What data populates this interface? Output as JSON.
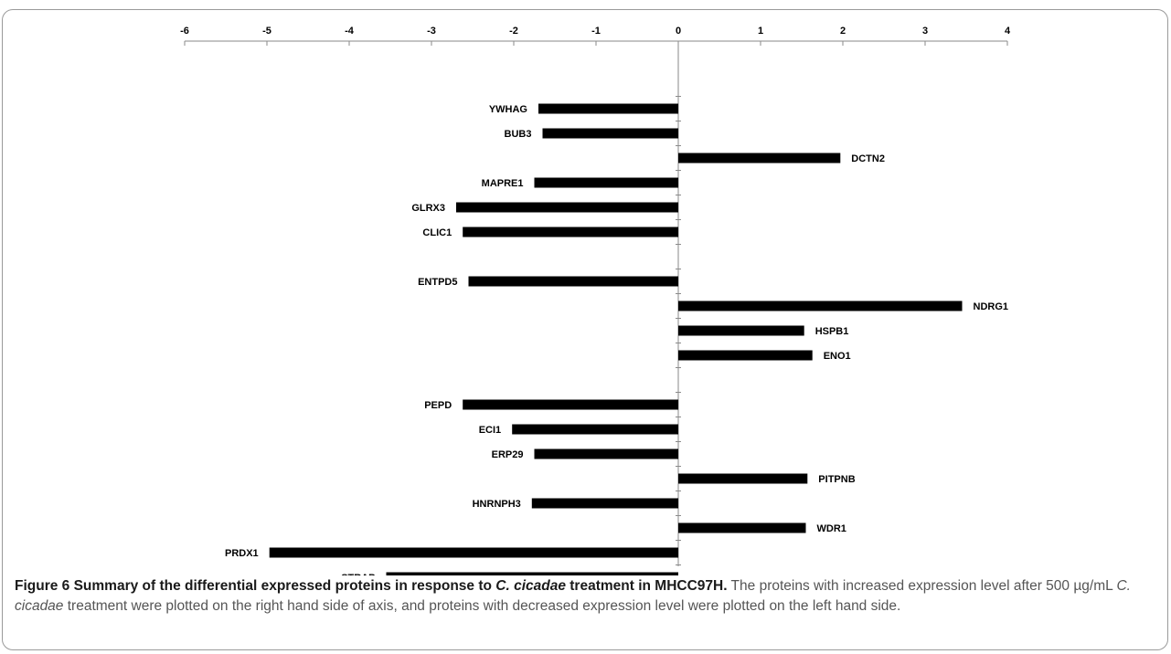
{
  "chart_data": {
    "type": "bar",
    "orientation": "horizontal",
    "categories": [
      "YWHAG",
      "BUB3",
      "DCTN2",
      "MAPRE1",
      "GLRX3",
      "CLIC1",
      "",
      "ENTPD5",
      "NDRG1",
      "HSPB1",
      "ENO1",
      "",
      "PEPD",
      "ECI1",
      "ERP29",
      "PITPNB",
      "HNRNPH3",
      "WDR1",
      "PRDX1",
      "STRAP"
    ],
    "values": [
      -1.7,
      -1.65,
      1.97,
      -1.75,
      -2.7,
      -2.62,
      null,
      -2.55,
      3.45,
      1.53,
      1.63,
      null,
      -2.62,
      -2.02,
      -1.75,
      1.57,
      -1.78,
      1.55,
      -4.97,
      -3.55
    ],
    "xlim": [
      -6,
      4
    ],
    "x_ticks": [
      "-6",
      "-5",
      "-4",
      "-3",
      "-2",
      "-1",
      "0",
      "1",
      "2",
      "3",
      "4"
    ],
    "axis_position": "top",
    "grid": false,
    "bar_color": "#000000"
  },
  "caption": {
    "label": "Figure 6 Summary of the differential expressed proteins in response to ",
    "title_em": "C. cicadae",
    "title_rest": " treatment in MHCC97H.",
    "text_1": " The proteins with increased expression level after 500 µg/mL ",
    "text_em": "C. cicadae",
    "text_2": " treatment were plotted on the right hand side of axis, and proteins with decreased expression level were plotted on the left hand side."
  }
}
